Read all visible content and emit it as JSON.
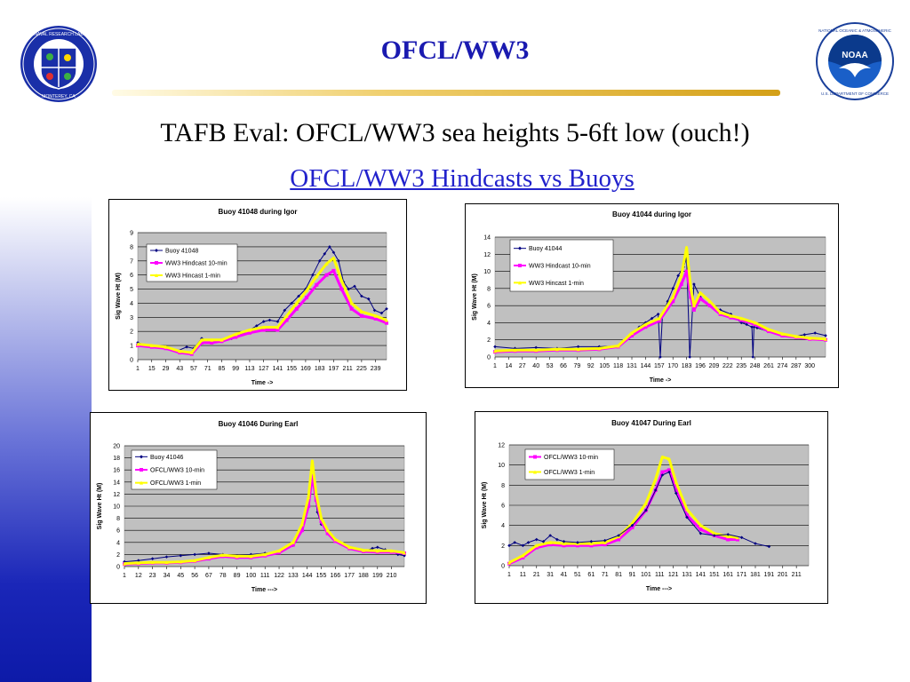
{
  "slide": {
    "title": "OFCL/WW3",
    "subtitle": "TAFB Eval:  OFCL/WW3 sea heights 5-6ft low (ouch!)",
    "link_title": "OFCL/WW3 Hindcasts vs Buoys",
    "nrl_logo_text": "NAVAL RESEARCH LABORATORY · MONTEREY, CA",
    "noaa_logo_text": "NOAA · NATIONAL OCEANIC AND ATMOSPHERIC ADMINISTRATION · U.S. DEPARTMENT OF COMMERCE"
  },
  "colors": {
    "title": "#1a1ab0",
    "link": "#2222cc",
    "buoy": "#000080",
    "ww3_10": "#ff00ff",
    "ww3_1": "#ffff00",
    "plot_bg": "#c0c0c0"
  },
  "chart_data": [
    {
      "type": "line",
      "title": "Buoy 41048 during Igor",
      "xlabel": "Time ->",
      "ylabel": "Sig Wave Ht (M)",
      "xlim": [
        1,
        250
      ],
      "ylim": [
        0,
        9
      ],
      "yticks": [
        "0",
        "1",
        "2",
        "3",
        "4",
        "5",
        "6",
        "7",
        "8",
        "9"
      ],
      "xticks": [
        "1",
        "15",
        "29",
        "43",
        "57",
        "71",
        "85",
        "99",
        "113",
        "127",
        "141",
        "155",
        "169",
        "183",
        "197",
        "211",
        "225",
        "239"
      ],
      "grid": true,
      "legend_position": "upper-left",
      "series": [
        {
          "name": "Buoy 41048",
          "color": "#000080",
          "marker": "diamond",
          "width": 1,
          "x": [
            1,
            10,
            20,
            30,
            40,
            50,
            57,
            65,
            75,
            85,
            95,
            105,
            113,
            120,
            127,
            133,
            141,
            148,
            155,
            162,
            169,
            176,
            183,
            188,
            193,
            197,
            202,
            207,
            212,
            218,
            225,
            232,
            238,
            245,
            250
          ],
          "y": [
            1.2,
            1.0,
            0.9,
            0.8,
            0.6,
            0.9,
            0.8,
            1.5,
            1.3,
            1.3,
            1.5,
            1.8,
            2.1,
            2.4,
            2.7,
            2.8,
            2.7,
            3.5,
            4.0,
            4.5,
            5.0,
            6.0,
            7.0,
            7.5,
            8.0,
            7.6,
            7.0,
            5.5,
            5.0,
            5.2,
            4.5,
            4.3,
            3.5,
            3.3,
            3.6
          ]
        },
        {
          "name": "WW3 Hindcast 10-min",
          "color": "#ff00ff",
          "marker": "square",
          "width": 3,
          "x": [
            1,
            15,
            29,
            43,
            55,
            65,
            75,
            85,
            99,
            113,
            127,
            141,
            150,
            160,
            170,
            180,
            190,
            197,
            205,
            215,
            225,
            239,
            250
          ],
          "y": [
            1.0,
            0.9,
            0.8,
            0.5,
            0.4,
            1.2,
            1.2,
            1.3,
            1.6,
            1.9,
            2.1,
            2.1,
            2.8,
            3.6,
            4.4,
            5.3,
            6.0,
            6.3,
            5.0,
            3.6,
            3.1,
            2.9,
            2.6
          ]
        },
        {
          "name": "WW3 Hincast 1-min",
          "color": "#ffff00",
          "marker": "triangle",
          "width": 3,
          "x": [
            1,
            15,
            29,
            43,
            55,
            65,
            75,
            85,
            99,
            113,
            127,
            141,
            150,
            160,
            170,
            180,
            190,
            197,
            205,
            215,
            225,
            239,
            250
          ],
          "y": [
            1.1,
            1.0,
            0.9,
            0.6,
            0.5,
            1.4,
            1.4,
            1.4,
            1.8,
            2.1,
            2.3,
            2.3,
            3.1,
            4.0,
            4.9,
            5.9,
            6.8,
            7.2,
            5.6,
            4.0,
            3.4,
            3.1,
            2.8
          ]
        }
      ]
    },
    {
      "type": "line",
      "title": "Buoy 41044 during Igor",
      "xlabel": "Time ->",
      "ylabel": "Sig Wave Ht (M)",
      "xlim": [
        1,
        315
      ],
      "ylim": [
        0,
        14
      ],
      "yticks": [
        "0",
        "2",
        "4",
        "6",
        "8",
        "10",
        "12",
        "14"
      ],
      "xticks": [
        "1",
        "14",
        "27",
        "40",
        "53",
        "66",
        "79",
        "92",
        "105",
        "118",
        "131",
        "144",
        "157",
        "170",
        "183",
        "196",
        "209",
        "222",
        "235",
        "248",
        "261",
        "274",
        "287",
        "300"
      ],
      "grid": true,
      "legend_position": "upper-left",
      "series": [
        {
          "name": "Buoy 41044",
          "color": "#000080",
          "marker": "diamond",
          "width": 1,
          "x": [
            1,
            20,
            40,
            60,
            80,
            100,
            118,
            125,
            131,
            138,
            144,
            150,
            156,
            158,
            160,
            165,
            170,
            175,
            180,
            183,
            186,
            190,
            196,
            205,
            215,
            225,
            235,
            240,
            245,
            246,
            247,
            250,
            260,
            275,
            285,
            295,
            305,
            315
          ],
          "y": [
            1.2,
            1.0,
            1.1,
            1.0,
            1.2,
            1.2,
            1.3,
            2.0,
            2.8,
            3.5,
            4.0,
            4.5,
            5.0,
            0,
            4.8,
            6.5,
            8.0,
            9.5,
            10.5,
            11.5,
            0,
            8.5,
            7.0,
            6.0,
            5.5,
            5.0,
            4.0,
            3.8,
            3.5,
            0,
            3.5,
            3.4,
            3.0,
            2.6,
            2.4,
            2.6,
            2.8,
            2.5
          ]
        },
        {
          "name": "WW3 Hindcast 10-min",
          "color": "#ff00ff",
          "marker": "square",
          "width": 3,
          "x": [
            1,
            20,
            40,
            60,
            80,
            100,
            118,
            131,
            144,
            157,
            170,
            178,
            183,
            187,
            190,
            196,
            205,
            215,
            225,
            235,
            248,
            261,
            274,
            287,
            300,
            315
          ],
          "y": [
            0.6,
            0.7,
            0.7,
            0.8,
            0.8,
            0.9,
            1.2,
            2.5,
            3.5,
            4.2,
            6.5,
            8.5,
            10.0,
            7.0,
            5.5,
            6.8,
            6.0,
            5.0,
            4.6,
            4.3,
            3.8,
            3.0,
            2.5,
            2.3,
            2.1,
            2.0
          ]
        },
        {
          "name": "WW3 Hincast 1-min",
          "color": "#ffff00",
          "marker": "triangle",
          "width": 3,
          "x": [
            1,
            20,
            40,
            60,
            80,
            100,
            118,
            131,
            144,
            157,
            170,
            178,
            183,
            187,
            190,
            196,
            205,
            215,
            225,
            235,
            248,
            261,
            274,
            287,
            300,
            315
          ],
          "y": [
            0.7,
            0.8,
            0.8,
            0.9,
            0.9,
            1.0,
            1.3,
            2.8,
            3.8,
            4.5,
            7.0,
            9.5,
            12.8,
            8.0,
            6.0,
            7.5,
            6.5,
            5.2,
            4.8,
            4.5,
            4.0,
            3.2,
            2.7,
            2.4,
            2.2,
            2.1
          ]
        }
      ]
    },
    {
      "type": "line",
      "title": "Buoy 41046 During Earl",
      "xlabel": "Time --->",
      "ylabel": "Sig Wave Ht (M)",
      "xlim": [
        1,
        220
      ],
      "ylim": [
        0,
        20
      ],
      "yticks": [
        "0",
        "2",
        "4",
        "6",
        "8",
        "10",
        "12",
        "14",
        "16",
        "18",
        "20"
      ],
      "xticks": [
        "1",
        "12",
        "23",
        "34",
        "45",
        "56",
        "67",
        "78",
        "89",
        "100",
        "111",
        "122",
        "133",
        "144",
        "155",
        "166",
        "177",
        "188",
        "199",
        "210"
      ],
      "grid": true,
      "legend_position": "upper-left",
      "series": [
        {
          "name": "Buoy 41046",
          "color": "#000080",
          "marker": "diamond",
          "width": 1,
          "x": [
            1,
            12,
            23,
            34,
            45,
            56,
            67,
            78,
            89,
            100,
            111,
            122,
            133,
            140,
            145,
            148,
            150,
            152,
            155,
            160,
            166,
            177,
            188,
            195,
            199,
            205,
            210,
            215,
            220
          ],
          "y": [
            0.8,
            1.0,
            1.3,
            1.6,
            1.8,
            2.0,
            2.2,
            2.0,
            1.8,
            2.0,
            2.2,
            2.5,
            3.5,
            6.0,
            10.0,
            14.5,
            12.0,
            9.0,
            7.0,
            6.0,
            4.5,
            3.0,
            2.5,
            3.0,
            3.2,
            2.8,
            2.5,
            2.0,
            1.8
          ]
        },
        {
          "name": "OFCL/WW3 10-min",
          "color": "#ff00ff",
          "marker": "square",
          "width": 3,
          "x": [
            1,
            12,
            23,
            34,
            45,
            56,
            67,
            78,
            89,
            100,
            111,
            122,
            133,
            140,
            145,
            148,
            151,
            155,
            160,
            166,
            177,
            188,
            199,
            210,
            220
          ],
          "y": [
            0.4,
            0.5,
            0.6,
            0.6,
            0.7,
            0.9,
            1.3,
            1.7,
            1.5,
            1.5,
            1.8,
            2.3,
            3.6,
            6.0,
            10.0,
            15.0,
            11.0,
            7.5,
            5.5,
            4.2,
            3.0,
            2.5,
            2.4,
            2.4,
            2.2
          ]
        },
        {
          "name": "OFCL/WW3 1-min",
          "color": "#ffff00",
          "marker": "triangle",
          "width": 3,
          "x": [
            1,
            12,
            23,
            34,
            45,
            56,
            67,
            78,
            89,
            100,
            111,
            122,
            133,
            140,
            145,
            148,
            151,
            155,
            160,
            166,
            177,
            188,
            199,
            210,
            220
          ],
          "y": [
            0.5,
            0.6,
            0.7,
            0.7,
            0.8,
            1.0,
            1.5,
            1.9,
            1.7,
            1.7,
            2.0,
            2.6,
            4.0,
            7.0,
            11.5,
            17.5,
            12.0,
            8.0,
            6.0,
            4.5,
            3.2,
            2.7,
            2.6,
            2.6,
            2.3
          ]
        }
      ]
    },
    {
      "type": "line",
      "title": "Buoy 41047 During Earl",
      "xlabel": "Time --->",
      "ylabel": "Sig Wave Ht (M)",
      "xlim": [
        1,
        220
      ],
      "ylim": [
        0,
        12
      ],
      "yticks": [
        "0",
        "2",
        "4",
        "6",
        "8",
        "10",
        "12"
      ],
      "xticks": [
        "1",
        "11",
        "21",
        "31",
        "41",
        "51",
        "61",
        "71",
        "81",
        "91",
        "101",
        "111",
        "121",
        "131",
        "141",
        "151",
        "161",
        "171",
        "181",
        "191",
        "201",
        "211"
      ],
      "grid": true,
      "legend_position": "upper-left",
      "series": [
        {
          "name": "OFCL/WW3 10-min",
          "color": "#ff00ff",
          "marker": "square",
          "width": 3,
          "x": [
            1,
            11,
            21,
            31,
            41,
            51,
            61,
            71,
            81,
            91,
            101,
            108,
            113,
            118,
            123,
            131,
            141,
            151,
            161,
            168
          ],
          "y": [
            0.2,
            0.8,
            1.8,
            2.1,
            2.0,
            2.0,
            2.0,
            2.1,
            2.6,
            3.8,
            5.5,
            7.5,
            9.3,
            9.5,
            7.5,
            5.0,
            3.6,
            3.0,
            2.6,
            2.6
          ]
        },
        {
          "name": "OFCL/WW3 1-min",
          "color": "#ffff00",
          "marker": "triangle",
          "width": 3,
          "x": [
            1,
            11,
            21,
            31,
            41,
            51,
            61,
            71,
            81,
            91,
            101,
            108,
            113,
            118,
            123,
            131,
            141,
            151,
            161,
            168
          ],
          "y": [
            0.3,
            1.0,
            2.0,
            2.3,
            2.2,
            2.2,
            2.2,
            2.3,
            2.9,
            4.2,
            6.2,
            8.6,
            10.8,
            10.6,
            8.3,
            5.6,
            4.0,
            3.2,
            2.9,
            2.8
          ]
        },
        {
          "name": "",
          "color": "#000080",
          "marker": "diamond",
          "width": 1,
          "x": [
            1,
            5,
            11,
            15,
            21,
            26,
            31,
            36,
            41,
            51,
            61,
            71,
            81,
            91,
            101,
            108,
            113,
            118,
            123,
            131,
            141,
            151,
            161,
            171,
            181,
            191
          ],
          "y": [
            2.0,
            2.3,
            2.0,
            2.3,
            2.6,
            2.4,
            3.0,
            2.6,
            2.4,
            2.3,
            2.4,
            2.5,
            3.0,
            4.0,
            5.5,
            7.5,
            9.0,
            9.3,
            7.2,
            4.8,
            3.2,
            3.0,
            3.1,
            2.8,
            2.2,
            1.9
          ]
        }
      ]
    }
  ]
}
